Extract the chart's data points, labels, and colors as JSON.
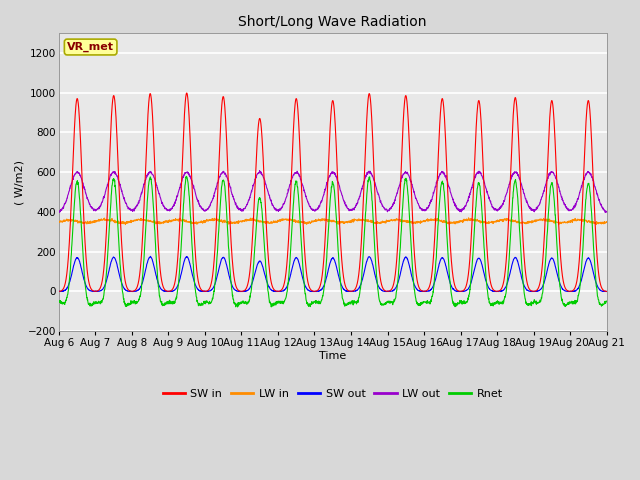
{
  "title": "Short/Long Wave Radiation",
  "xlabel": "Time",
  "ylabel": "( W/m2)",
  "ylim": [
    -200,
    1300
  ],
  "yticks": [
    -200,
    0,
    200,
    400,
    600,
    800,
    1000,
    1200
  ],
  "n_days": 15,
  "colors": {
    "SW_in": "#ff0000",
    "LW_in": "#ff8c00",
    "SW_out": "#0000ff",
    "LW_out": "#9900cc",
    "Rnet": "#00cc00"
  },
  "legend_labels": [
    "SW in",
    "LW in",
    "SW out",
    "LW out",
    "Rnet"
  ],
  "station_label": "VR_met",
  "bg_color": "#d8d8d8",
  "plot_bg_color": "#e8e8e8",
  "grid_color": "#ffffff",
  "figsize": [
    6.4,
    4.8
  ],
  "dpi": 100
}
